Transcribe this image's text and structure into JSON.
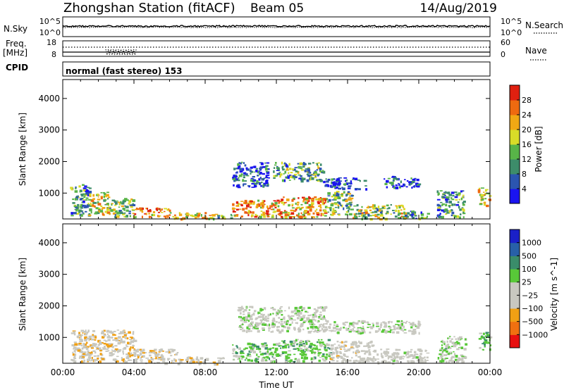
{
  "header": {
    "station": "Zhongshan Station (fitACF)",
    "beam": "Beam 05",
    "date": "14/Aug/2019"
  },
  "summary_panels": {
    "nsky_label": "N.Sky",
    "nsky_ticks": [
      "10^5",
      "10^0"
    ],
    "nsearch_label": "N.Search",
    "nsearch_ticks": [
      "10^5",
      "10^0"
    ],
    "freq_label": "Freq.",
    "freq_unit": "[MHz]",
    "freq_ticks": [
      "18",
      "8"
    ],
    "nave_label": "Nave",
    "nave_ticks": [
      "60",
      "0"
    ],
    "cpid_label": "CPID",
    "cpid_text": "normal (fast stereo) 153"
  },
  "colors": {
    "power_scale": [
      "#1a14f0",
      "#2b55b0",
      "#3d8c6a",
      "#58b448",
      "#d8dc28",
      "#f0a814",
      "#ee6a10",
      "#e02010"
    ],
    "velocity_scale": [
      "#e81010",
      "#f07010",
      "#f0a014",
      "#c8c8c0",
      "#c8c8c0",
      "#58c838",
      "#3a8c6a",
      "#2860a8",
      "#1a20c8"
    ],
    "background": "#ffffff"
  },
  "chart_data": [
    {
      "type": "heatmap",
      "name": "power-panel",
      "ylabel": "Slant Range [km]",
      "colorbar_label": "Power [dB]",
      "colorbar_ticks": [
        "4",
        "8",
        "12",
        "16",
        "20",
        "24",
        "28"
      ],
      "colorbar_range": [
        0,
        32
      ],
      "ylim": [
        180,
        4600
      ],
      "yticks": [
        "1000",
        "2000",
        "3000",
        "4000"
      ],
      "ytick_values": [
        1000,
        2000,
        3000,
        4000
      ],
      "xlim": [
        0,
        24
      ],
      "xticks": [
        "00:00",
        "04:00",
        "08:00",
        "12:00",
        "16:00",
        "20:00",
        "00:00"
      ],
      "xtick_values": [
        0,
        4,
        8,
        12,
        16,
        20,
        24
      ],
      "blobs": [
        {
          "t0": 0.4,
          "t1": 1.5,
          "r0": 300,
          "r1": 1300,
          "v": 10
        },
        {
          "t0": 1.4,
          "t1": 2.6,
          "r0": 300,
          "r1": 1050,
          "v": 18
        },
        {
          "t0": 2.6,
          "t1": 4.0,
          "r0": 250,
          "r1": 850,
          "v": 14
        },
        {
          "t0": 4.0,
          "t1": 6.0,
          "r0": 250,
          "r1": 550,
          "v": 22
        },
        {
          "t0": 6.0,
          "t1": 8.0,
          "r0": 200,
          "r1": 400,
          "v": 20
        },
        {
          "t0": 8.0,
          "t1": 9.5,
          "r0": 200,
          "r1": 350,
          "v": 16
        },
        {
          "t0": 9.5,
          "t1": 12.2,
          "r0": 250,
          "r1": 800,
          "v": 24
        },
        {
          "t0": 12.2,
          "t1": 14.8,
          "r0": 250,
          "r1": 900,
          "v": 22
        },
        {
          "t0": 14.8,
          "t1": 16.2,
          "r0": 300,
          "r1": 1100,
          "v": 14
        },
        {
          "t0": 16.2,
          "t1": 19.2,
          "r0": 200,
          "r1": 650,
          "v": 16
        },
        {
          "t0": 19.2,
          "t1": 20.5,
          "r0": 200,
          "r1": 450,
          "v": 10
        },
        {
          "t0": 11.8,
          "t1": 14.6,
          "r0": 1400,
          "r1": 2000,
          "v": 12
        },
        {
          "t0": 9.5,
          "t1": 11.5,
          "r0": 1200,
          "r1": 2000,
          "v": 6
        },
        {
          "t0": 14.6,
          "t1": 17.0,
          "r0": 1150,
          "r1": 1500,
          "v": 6
        },
        {
          "t0": 18.0,
          "t1": 20.0,
          "r0": 1200,
          "r1": 1550,
          "v": 6
        },
        {
          "t0": 21.0,
          "t1": 22.5,
          "r0": 250,
          "r1": 1100,
          "v": 10
        },
        {
          "t0": 23.3,
          "t1": 24.0,
          "r0": 600,
          "r1": 1200,
          "v": 20
        }
      ]
    },
    {
      "type": "heatmap",
      "name": "velocity-panel",
      "ylabel": "Slant Range [km]",
      "colorbar_label": "Velocity [m s^-1]",
      "colorbar_ticks": [
        "−1000",
        "−500",
        "−100",
        "−25",
        "25",
        "100",
        "500",
        "1000"
      ],
      "colorbar_range": [
        -1200,
        1200
      ],
      "ylim": [
        180,
        4600
      ],
      "yticks": [
        "1000",
        "2000",
        "3000",
        "4000"
      ],
      "ytick_values": [
        1000,
        2000,
        3000,
        4000
      ],
      "xlim": [
        0,
        24
      ],
      "xticks": [
        "00:00",
        "04:00",
        "08:00",
        "12:00",
        "16:00",
        "20:00",
        "00:00"
      ],
      "xtick_values": [
        0,
        4,
        8,
        12,
        16,
        20,
        24
      ],
      "xlabel": "Time UT",
      "blobs": [
        {
          "t0": 0.4,
          "t1": 4.0,
          "r0": 250,
          "r1": 1250,
          "v": -300
        },
        {
          "t0": 4.0,
          "t1": 6.5,
          "r0": 200,
          "r1": 650,
          "v": -300
        },
        {
          "t0": 6.5,
          "t1": 9.0,
          "r0": 180,
          "r1": 400,
          "v": -250
        },
        {
          "t0": 9.5,
          "t1": 12.2,
          "r0": 250,
          "r1": 850,
          "v": 250
        },
        {
          "t0": 12.2,
          "t1": 15.0,
          "r0": 250,
          "r1": 950,
          "v": 250
        },
        {
          "t0": 15.0,
          "t1": 17.5,
          "r0": 250,
          "r1": 900,
          "v": -200
        },
        {
          "t0": 17.5,
          "t1": 20.5,
          "r0": 200,
          "r1": 650,
          "v": -100
        },
        {
          "t0": 9.8,
          "t1": 14.8,
          "r0": 1200,
          "r1": 2000,
          "v": 0
        },
        {
          "t0": 14.8,
          "t1": 20.0,
          "r0": 1150,
          "r1": 1550,
          "v": 0
        },
        {
          "t0": 21.0,
          "t1": 22.6,
          "r0": 250,
          "r1": 1050,
          "v": 150
        },
        {
          "t0": 23.3,
          "t1": 24.0,
          "r0": 600,
          "r1": 1200,
          "v": 300
        }
      ]
    }
  ]
}
